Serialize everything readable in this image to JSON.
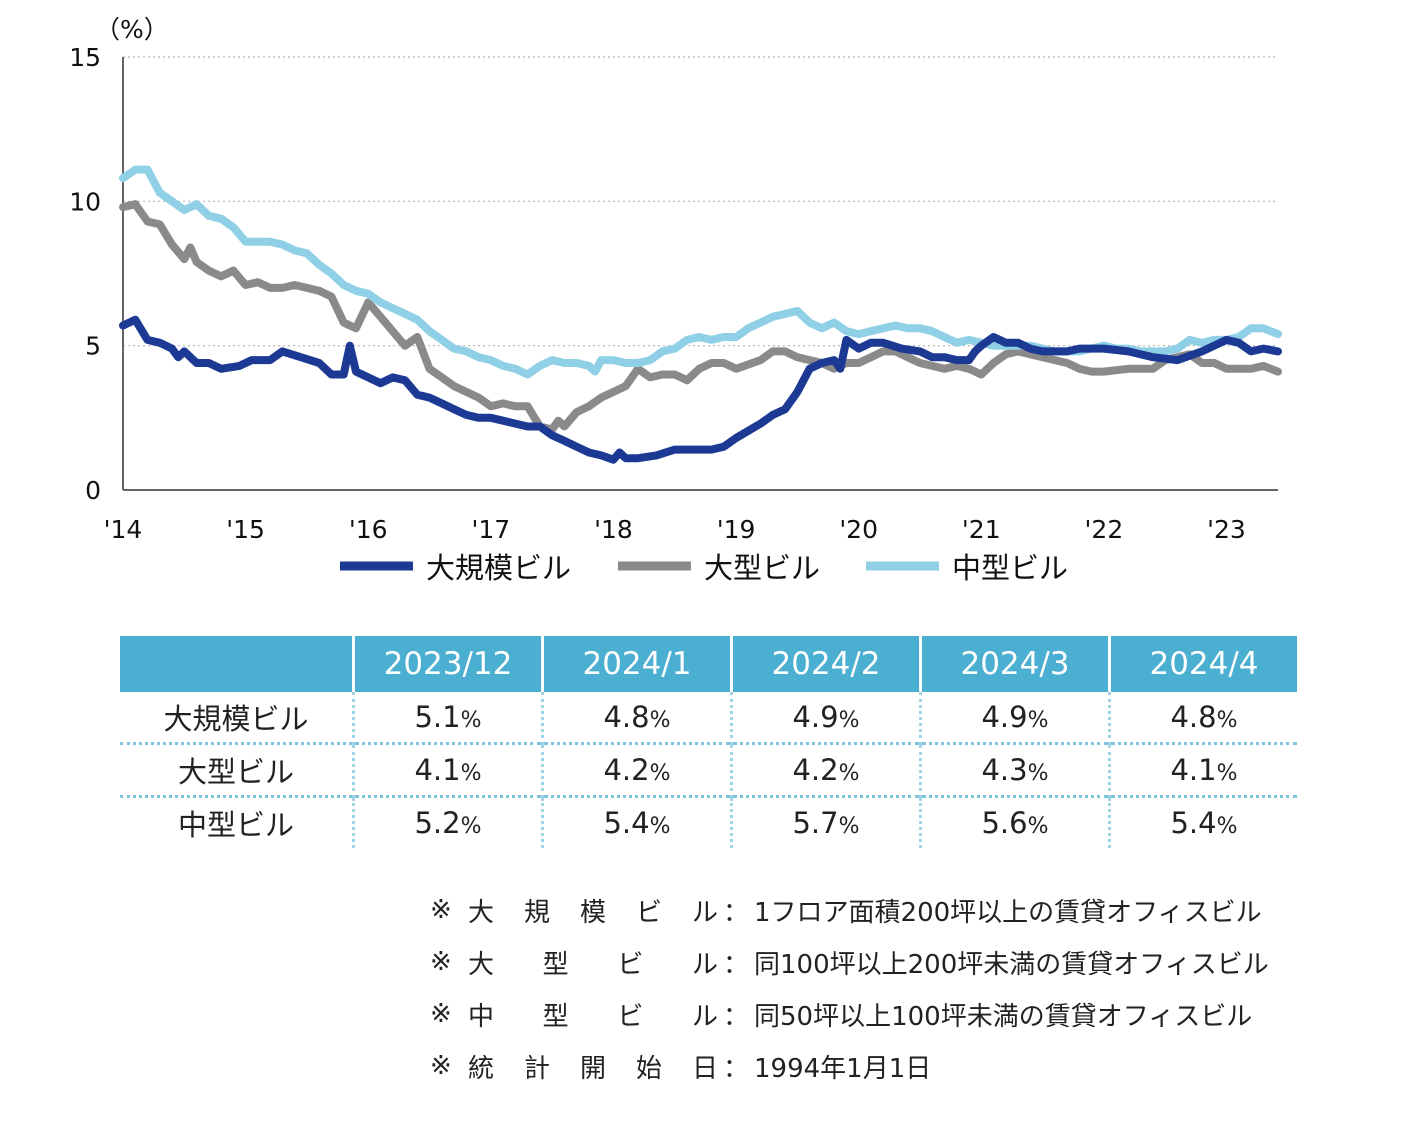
{
  "chart_data": {
    "type": "line",
    "unit_label": "（%）",
    "ylim": [
      0,
      15
    ],
    "yticks": [
      0,
      5,
      10,
      15
    ],
    "xlim": [
      2014,
      2023.42
    ],
    "xticks": [
      {
        "v": 2014,
        "label": "'14"
      },
      {
        "v": 2015,
        "label": "'15"
      },
      {
        "v": 2016,
        "label": "'16"
      },
      {
        "v": 2017,
        "label": "'17"
      },
      {
        "v": 2018,
        "label": "'18"
      },
      {
        "v": 2019,
        "label": "'19"
      },
      {
        "v": 2020,
        "label": "'20"
      },
      {
        "v": 2021,
        "label": "'21"
      },
      {
        "v": 2022,
        "label": "'22"
      },
      {
        "v": 2023,
        "label": "'23"
      }
    ],
    "grid": "horizontal-dotted",
    "legend_position": "bottom",
    "series": [
      {
        "name": "大規模ビル",
        "color": "#1c3a94",
        "points": [
          [
            2014.0,
            5.7
          ],
          [
            2014.1,
            5.9
          ],
          [
            2014.2,
            5.2
          ],
          [
            2014.3,
            5.1
          ],
          [
            2014.4,
            4.9
          ],
          [
            2014.45,
            4.6
          ],
          [
            2014.5,
            4.8
          ],
          [
            2014.6,
            4.4
          ],
          [
            2014.7,
            4.4
          ],
          [
            2014.8,
            4.2
          ],
          [
            2014.95,
            4.3
          ],
          [
            2015.05,
            4.5
          ],
          [
            2015.2,
            4.5
          ],
          [
            2015.3,
            4.8
          ],
          [
            2015.45,
            4.6
          ],
          [
            2015.6,
            4.4
          ],
          [
            2015.7,
            4.0
          ],
          [
            2015.75,
            4.0
          ],
          [
            2015.8,
            4.0
          ],
          [
            2015.85,
            5.0
          ],
          [
            2015.9,
            4.1
          ],
          [
            2016.0,
            3.9
          ],
          [
            2016.1,
            3.7
          ],
          [
            2016.2,
            3.9
          ],
          [
            2016.3,
            3.8
          ],
          [
            2016.4,
            3.3
          ],
          [
            2016.5,
            3.2
          ],
          [
            2016.6,
            3.0
          ],
          [
            2016.7,
            2.8
          ],
          [
            2016.8,
            2.6
          ],
          [
            2016.9,
            2.5
          ],
          [
            2017.0,
            2.5
          ],
          [
            2017.1,
            2.4
          ],
          [
            2017.2,
            2.3
          ],
          [
            2017.3,
            2.2
          ],
          [
            2017.4,
            2.2
          ],
          [
            2017.5,
            1.9
          ],
          [
            2017.6,
            1.7
          ],
          [
            2017.7,
            1.5
          ],
          [
            2017.8,
            1.3
          ],
          [
            2017.9,
            1.2
          ],
          [
            2018.0,
            1.05
          ],
          [
            2018.05,
            1.3
          ],
          [
            2018.1,
            1.1
          ],
          [
            2018.2,
            1.1
          ],
          [
            2018.35,
            1.2
          ],
          [
            2018.5,
            1.4
          ],
          [
            2018.7,
            1.4
          ],
          [
            2018.8,
            1.4
          ],
          [
            2018.9,
            1.5
          ],
          [
            2019.0,
            1.8
          ],
          [
            2019.2,
            2.3
          ],
          [
            2019.3,
            2.6
          ],
          [
            2019.4,
            2.8
          ],
          [
            2019.5,
            3.4
          ],
          [
            2019.6,
            4.2
          ],
          [
            2019.7,
            4.4
          ],
          [
            2019.8,
            4.5
          ],
          [
            2019.85,
            4.2
          ],
          [
            2019.9,
            5.2
          ],
          [
            2020.0,
            4.9
          ],
          [
            2020.1,
            5.1
          ],
          [
            2020.2,
            5.1
          ],
          [
            2020.35,
            4.9
          ],
          [
            2020.5,
            4.8
          ],
          [
            2020.6,
            4.6
          ],
          [
            2020.7,
            4.6
          ],
          [
            2020.8,
            4.5
          ],
          [
            2020.9,
            4.5
          ],
          [
            2020.95,
            4.8
          ],
          [
            2021.0,
            5.0
          ],
          [
            2021.1,
            5.3
          ],
          [
            2021.2,
            5.1
          ],
          [
            2021.3,
            5.1
          ],
          [
            2021.4,
            4.9
          ],
          [
            2021.5,
            4.8
          ],
          [
            2021.6,
            4.8
          ],
          [
            2021.7,
            4.8
          ],
          [
            2021.8,
            4.9
          ],
          [
            2022.0,
            4.9
          ],
          [
            2022.2,
            4.8
          ],
          [
            2022.4,
            4.6
          ],
          [
            2022.6,
            4.5
          ],
          [
            2022.8,
            4.8
          ],
          [
            2023.0,
            5.2
          ],
          [
            2023.1,
            5.1
          ],
          [
            2023.2,
            4.8
          ],
          [
            2023.3,
            4.9
          ],
          [
            2023.42,
            4.8
          ]
        ]
      },
      {
        "name": "大型ビル",
        "color": "#8a8a8a",
        "points": [
          [
            2014.0,
            9.8
          ],
          [
            2014.1,
            9.9
          ],
          [
            2014.2,
            9.3
          ],
          [
            2014.3,
            9.2
          ],
          [
            2014.4,
            8.5
          ],
          [
            2014.5,
            8.0
          ],
          [
            2014.55,
            8.4
          ],
          [
            2014.6,
            7.9
          ],
          [
            2014.7,
            7.6
          ],
          [
            2014.8,
            7.4
          ],
          [
            2014.9,
            7.6
          ],
          [
            2015.0,
            7.1
          ],
          [
            2015.1,
            7.2
          ],
          [
            2015.2,
            7.0
          ],
          [
            2015.3,
            7.0
          ],
          [
            2015.4,
            7.1
          ],
          [
            2015.5,
            7.0
          ],
          [
            2015.6,
            6.9
          ],
          [
            2015.7,
            6.7
          ],
          [
            2015.8,
            5.8
          ],
          [
            2015.9,
            5.6
          ],
          [
            2016.0,
            6.5
          ],
          [
            2016.1,
            6.0
          ],
          [
            2016.2,
            5.5
          ],
          [
            2016.3,
            5.0
          ],
          [
            2016.4,
            5.3
          ],
          [
            2016.5,
            4.2
          ],
          [
            2016.6,
            3.9
          ],
          [
            2016.7,
            3.6
          ],
          [
            2016.8,
            3.4
          ],
          [
            2016.9,
            3.2
          ],
          [
            2017.0,
            2.9
          ],
          [
            2017.1,
            3.0
          ],
          [
            2017.2,
            2.9
          ],
          [
            2017.3,
            2.9
          ],
          [
            2017.4,
            2.2
          ],
          [
            2017.5,
            2.1
          ],
          [
            2017.55,
            2.4
          ],
          [
            2017.6,
            2.2
          ],
          [
            2017.7,
            2.7
          ],
          [
            2017.8,
            2.9
          ],
          [
            2017.9,
            3.2
          ],
          [
            2018.0,
            3.4
          ],
          [
            2018.1,
            3.6
          ],
          [
            2018.2,
            4.2
          ],
          [
            2018.3,
            3.9
          ],
          [
            2018.4,
            4.0
          ],
          [
            2018.5,
            4.0
          ],
          [
            2018.6,
            3.8
          ],
          [
            2018.7,
            4.2
          ],
          [
            2018.8,
            4.4
          ],
          [
            2018.9,
            4.4
          ],
          [
            2019.0,
            4.2
          ],
          [
            2019.2,
            4.5
          ],
          [
            2019.3,
            4.8
          ],
          [
            2019.4,
            4.8
          ],
          [
            2019.5,
            4.6
          ],
          [
            2019.6,
            4.5
          ],
          [
            2019.7,
            4.4
          ],
          [
            2019.8,
            4.2
          ],
          [
            2019.9,
            4.4
          ],
          [
            2020.0,
            4.4
          ],
          [
            2020.1,
            4.6
          ],
          [
            2020.2,
            4.8
          ],
          [
            2020.3,
            4.8
          ],
          [
            2020.4,
            4.6
          ],
          [
            2020.5,
            4.4
          ],
          [
            2020.6,
            4.3
          ],
          [
            2020.7,
            4.2
          ],
          [
            2020.8,
            4.3
          ],
          [
            2020.9,
            4.2
          ],
          [
            2021.0,
            4.0
          ],
          [
            2021.1,
            4.4
          ],
          [
            2021.2,
            4.7
          ],
          [
            2021.3,
            4.8
          ],
          [
            2021.4,
            4.7
          ],
          [
            2021.5,
            4.6
          ],
          [
            2021.6,
            4.5
          ],
          [
            2021.7,
            4.4
          ],
          [
            2021.8,
            4.2
          ],
          [
            2021.9,
            4.1
          ],
          [
            2022.0,
            4.1
          ],
          [
            2022.2,
            4.2
          ],
          [
            2022.4,
            4.2
          ],
          [
            2022.5,
            4.5
          ],
          [
            2022.6,
            4.6
          ],
          [
            2022.7,
            4.7
          ],
          [
            2022.8,
            4.4
          ],
          [
            2022.9,
            4.4
          ],
          [
            2023.0,
            4.2
          ],
          [
            2023.1,
            4.2
          ],
          [
            2023.2,
            4.2
          ],
          [
            2023.3,
            4.3
          ],
          [
            2023.42,
            4.1
          ]
        ]
      },
      {
        "name": "中型ビル",
        "color": "#8fd0e6",
        "points": [
          [
            2014.0,
            10.8
          ],
          [
            2014.1,
            11.1
          ],
          [
            2014.2,
            11.1
          ],
          [
            2014.3,
            10.3
          ],
          [
            2014.4,
            10.0
          ],
          [
            2014.5,
            9.7
          ],
          [
            2014.6,
            9.9
          ],
          [
            2014.7,
            9.5
          ],
          [
            2014.8,
            9.4
          ],
          [
            2014.9,
            9.1
          ],
          [
            2015.0,
            8.6
          ],
          [
            2015.1,
            8.6
          ],
          [
            2015.2,
            8.6
          ],
          [
            2015.3,
            8.5
          ],
          [
            2015.4,
            8.3
          ],
          [
            2015.5,
            8.2
          ],
          [
            2015.6,
            7.8
          ],
          [
            2015.7,
            7.5
          ],
          [
            2015.8,
            7.1
          ],
          [
            2015.9,
            6.9
          ],
          [
            2016.0,
            6.8
          ],
          [
            2016.1,
            6.5
          ],
          [
            2016.2,
            6.3
          ],
          [
            2016.3,
            6.1
          ],
          [
            2016.4,
            5.9
          ],
          [
            2016.5,
            5.5
          ],
          [
            2016.6,
            5.2
          ],
          [
            2016.7,
            4.9
          ],
          [
            2016.8,
            4.8
          ],
          [
            2016.9,
            4.6
          ],
          [
            2017.0,
            4.5
          ],
          [
            2017.1,
            4.3
          ],
          [
            2017.2,
            4.2
          ],
          [
            2017.3,
            4.0
          ],
          [
            2017.4,
            4.3
          ],
          [
            2017.5,
            4.5
          ],
          [
            2017.6,
            4.4
          ],
          [
            2017.7,
            4.4
          ],
          [
            2017.8,
            4.3
          ],
          [
            2017.85,
            4.1
          ],
          [
            2017.9,
            4.5
          ],
          [
            2018.0,
            4.5
          ],
          [
            2018.1,
            4.4
          ],
          [
            2018.2,
            4.4
          ],
          [
            2018.3,
            4.5
          ],
          [
            2018.4,
            4.8
          ],
          [
            2018.5,
            4.9
          ],
          [
            2018.6,
            5.2
          ],
          [
            2018.7,
            5.3
          ],
          [
            2018.8,
            5.2
          ],
          [
            2018.9,
            5.3
          ],
          [
            2019.0,
            5.3
          ],
          [
            2019.1,
            5.6
          ],
          [
            2019.2,
            5.8
          ],
          [
            2019.3,
            6.0
          ],
          [
            2019.4,
            6.1
          ],
          [
            2019.5,
            6.2
          ],
          [
            2019.6,
            5.8
          ],
          [
            2019.7,
            5.6
          ],
          [
            2019.8,
            5.8
          ],
          [
            2019.9,
            5.5
          ],
          [
            2020.0,
            5.4
          ],
          [
            2020.1,
            5.5
          ],
          [
            2020.2,
            5.6
          ],
          [
            2020.3,
            5.7
          ],
          [
            2020.4,
            5.6
          ],
          [
            2020.5,
            5.6
          ],
          [
            2020.6,
            5.5
          ],
          [
            2020.7,
            5.3
          ],
          [
            2020.8,
            5.1
          ],
          [
            2020.9,
            5.2
          ],
          [
            2021.0,
            5.1
          ],
          [
            2021.1,
            5.0
          ],
          [
            2021.2,
            5.0
          ],
          [
            2021.3,
            5.0
          ],
          [
            2021.4,
            5.0
          ],
          [
            2021.5,
            4.9
          ],
          [
            2021.6,
            4.8
          ],
          [
            2021.7,
            4.8
          ],
          [
            2021.8,
            4.8
          ],
          [
            2022.0,
            5.0
          ],
          [
            2022.1,
            4.9
          ],
          [
            2022.2,
            4.9
          ],
          [
            2022.3,
            4.8
          ],
          [
            2022.4,
            4.8
          ],
          [
            2022.5,
            4.8
          ],
          [
            2022.6,
            4.9
          ],
          [
            2022.7,
            5.2
          ],
          [
            2022.8,
            5.1
          ],
          [
            2022.9,
            5.2
          ],
          [
            2023.0,
            5.2
          ],
          [
            2023.1,
            5.3
          ],
          [
            2023.2,
            5.6
          ],
          [
            2023.3,
            5.6
          ],
          [
            2023.42,
            5.4
          ]
        ]
      }
    ]
  },
  "table": {
    "headers": [
      "2023/12",
      "2024/1",
      "2024/2",
      "2024/3",
      "2024/4"
    ],
    "rows": [
      {
        "label": "大規模ビル",
        "values": [
          "5.1",
          "4.8",
          "4.9",
          "4.9",
          "4.8"
        ]
      },
      {
        "label": "大型ビル",
        "values": [
          "4.1",
          "4.2",
          "4.2",
          "4.3",
          "4.1"
        ]
      },
      {
        "label": "中型ビル",
        "values": [
          "5.2",
          "5.4",
          "5.7",
          "5.6",
          "5.4"
        ]
      }
    ],
    "percent_sign": "%"
  },
  "notes": [
    {
      "mark": "※",
      "term_chars": [
        "大",
        "規",
        "模",
        "ビ",
        "ル"
      ],
      "colon": "：",
      "desc": "1フロア面積200坪以上の賃貸オフィスビル"
    },
    {
      "mark": "※",
      "term_chars": [
        "大",
        "型",
        "ビ",
        "ル"
      ],
      "colon": "：",
      "desc": "同100坪以上200坪未満の賃貸オフィスビル"
    },
    {
      "mark": "※",
      "term_chars": [
        "中",
        "型",
        "ビ",
        "ル"
      ],
      "colon": "：",
      "desc": "同50坪以上100坪未満の賃貸オフィスビル"
    },
    {
      "mark": "※",
      "term_chars": [
        "統",
        "計",
        "開",
        "始",
        "日"
      ],
      "colon": "：",
      "desc": "1994年1月1日"
    }
  ]
}
